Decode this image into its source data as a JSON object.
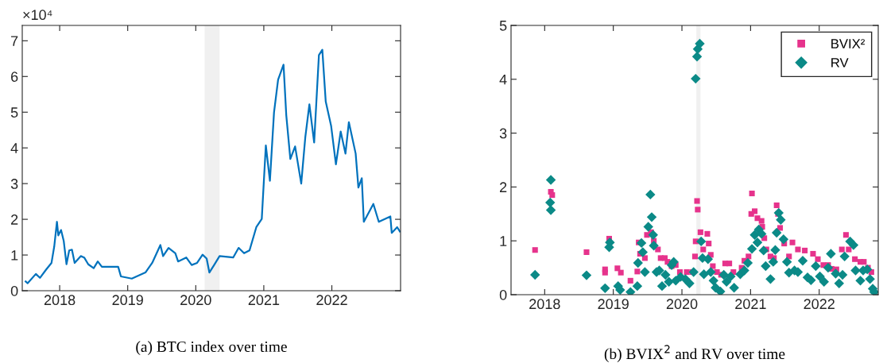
{
  "chart_data": [
    {
      "type": "line",
      "xlabel": "(a) BTC index over time",
      "annotations": [
        "×10⁴"
      ],
      "x": [
        2017.5,
        2017.53,
        2017.65,
        2017.71,
        2017.8,
        2017.88,
        2017.92,
        2017.96,
        2017.98,
        2018.02,
        2018.06,
        2018.1,
        2018.14,
        2018.18,
        2018.22,
        2018.31,
        2018.36,
        2018.42,
        2018.5,
        2018.56,
        2018.62,
        2018.86,
        2018.9,
        2019.06,
        2019.26,
        2019.36,
        2019.48,
        2019.52,
        2019.6,
        2019.7,
        2019.74,
        2019.86,
        2019.94,
        2020.02,
        2020.1,
        2020.16,
        2020.2,
        2020.27,
        2020.35,
        2020.55,
        2020.63,
        2020.71,
        2020.79,
        2020.89,
        2020.97,
        2021.03,
        2021.09,
        2021.15,
        2021.21,
        2021.29,
        2021.33,
        2021.39,
        2021.46,
        2021.55,
        2021.61,
        2021.67,
        2021.74,
        2021.81,
        2021.86,
        2021.91,
        2021.99,
        2022.06,
        2022.13,
        2022.2,
        2022.25,
        2022.35,
        2022.39,
        2022.44,
        2022.47,
        2022.61,
        2022.69,
        2022.86,
        2022.88,
        2022.96,
        2023.0
      ],
      "series": [
        {
          "color": "#0072bd",
          "values": [
            0.26,
            0.21,
            0.47,
            0.36,
            0.59,
            0.78,
            1.24,
            1.93,
            1.55,
            1.7,
            1.39,
            0.74,
            1.13,
            1.15,
            0.78,
            0.97,
            0.93,
            0.74,
            0.63,
            0.82,
            0.67,
            0.67,
            0.4,
            0.34,
            0.51,
            0.78,
            1.28,
            0.97,
            1.2,
            1.05,
            0.82,
            0.93,
            0.72,
            0.78,
            1.01,
            0.9,
            0.51,
            0.72,
            0.97,
            0.93,
            1.2,
            1.05,
            1.13,
            1.78,
            2.01,
            4.07,
            3.08,
            4.99,
            5.91,
            6.33,
            4.92,
            3.69,
            4.04,
            3.0,
            4.3,
            5.22,
            4.15,
            6.6,
            6.75,
            5.3,
            4.61,
            3.54,
            4.46,
            3.84,
            4.72,
            3.84,
            2.89,
            3.15,
            1.93,
            2.43,
            1.93,
            2.08,
            1.62,
            1.78,
            1.66
          ]
        }
      ],
      "xlim": [
        2017.45,
        2023.01
      ],
      "xticks": [
        2018,
        2019,
        2020,
        2021,
        2022
      ],
      "ylim": [
        0,
        7.43
      ],
      "yticks": [
        0,
        1,
        2,
        3,
        4,
        5,
        6,
        7
      ],
      "bands": [
        {
          "axis": "x",
          "from": 2020.13,
          "to": 2020.35,
          "color": "#f0f0f0"
        }
      ],
      "grid": false,
      "legend": false,
      "marker": "none",
      "line_style": "solid"
    },
    {
      "type": "scatter",
      "xlabel": "(b) BVIX$^{2}$ and RV over time",
      "series": [
        {
          "name": "BVIX²",
          "color": "#e6338c",
          "marker": "square",
          "x": [
            2017.86,
            2018.09,
            2018.11,
            2018.61,
            2018.88,
            2018.88,
            2018.94,
            2019.06,
            2019.11,
            2019.25,
            2019.35,
            2019.37,
            2019.39,
            2019.46,
            2019.49,
            2019.55,
            2019.59,
            2019.65,
            2019.69,
            2019.75,
            2019.79,
            2019.85,
            2019.91,
            2019.97,
            2020.07,
            2020.15,
            2020.19,
            2020.2,
            2020.22,
            2020.23,
            2020.27,
            2020.31,
            2020.37,
            2020.39,
            2020.42,
            2020.45,
            2020.51,
            2020.57,
            2020.63,
            2020.69,
            2020.75,
            2020.87,
            2020.91,
            2020.97,
            2021.01,
            2021.02,
            2021.06,
            2021.1,
            2021.16,
            2021.17,
            2021.2,
            2021.23,
            2021.29,
            2021.34,
            2021.38,
            2021.4,
            2021.43,
            2021.49,
            2021.56,
            2021.61,
            2021.69,
            2021.79,
            2021.91,
            2021.98,
            2022.06,
            2022.13,
            2022.18,
            2022.25,
            2022.33,
            2022.39,
            2022.43,
            2022.52,
            2022.6,
            2022.65,
            2022.71,
            2022.76
          ],
          "values": [
            0.83,
            1.91,
            1.85,
            0.79,
            0.47,
            0.41,
            1.04,
            0.49,
            0.41,
            0.26,
            0.43,
            0.97,
            0.76,
            0.68,
            1.11,
            1.16,
            1.0,
            0.84,
            0.68,
            0.68,
            0.61,
            0.53,
            0.55,
            0.42,
            0.42,
            0.42,
            0.71,
            0.99,
            1.74,
            1.58,
            1.16,
            0.84,
            1.13,
            0.95,
            0.74,
            0.53,
            0.42,
            0.37,
            0.58,
            0.58,
            0.42,
            0.5,
            0.63,
            0.71,
            1.5,
            1.88,
            1.55,
            1.42,
            1.37,
            1.26,
            1.05,
            0.84,
            0.71,
            0.68,
            1.66,
            1.5,
            1.24,
            0.95,
            0.71,
            0.97,
            0.84,
            0.82,
            0.76,
            0.66,
            0.55,
            0.55,
            0.48,
            0.47,
            0.84,
            1.11,
            0.84,
            0.66,
            0.61,
            0.61,
            0.5,
            0.42
          ]
        },
        {
          "name": "RV",
          "color": "#0b8a87",
          "marker": "diamond",
          "x": [
            2017.86,
            2018.09,
            2018.08,
            2018.09,
            2018.61,
            2018.88,
            2018.94,
            2018.95,
            2019.07,
            2019.1,
            2019.25,
            2019.35,
            2019.36,
            2019.41,
            2019.43,
            2019.46,
            2019.51,
            2019.54,
            2019.56,
            2019.58,
            2019.59,
            2019.63,
            2019.67,
            2019.71,
            2019.76,
            2019.81,
            2019.85,
            2019.88,
            2019.91,
            2019.98,
            2020.05,
            2020.11,
            2020.17,
            2020.2,
            2020.22,
            2020.23,
            2020.26,
            2020.28,
            2020.3,
            2020.32,
            2020.38,
            2020.42,
            2020.46,
            2020.49,
            2020.56,
            2020.61,
            2020.65,
            2020.71,
            2020.76,
            2020.85,
            2020.91,
            2020.96,
            2021.02,
            2021.06,
            2021.1,
            2021.12,
            2021.16,
            2021.19,
            2021.22,
            2021.29,
            2021.33,
            2021.36,
            2021.38,
            2021.41,
            2021.44,
            2021.48,
            2021.53,
            2021.56,
            2021.64,
            2021.69,
            2021.76,
            2021.83,
            2021.88,
            2021.95,
            2022.01,
            2022.07,
            2022.13,
            2022.17,
            2022.24,
            2022.29,
            2022.34,
            2022.37,
            2022.45,
            2022.5,
            2022.53,
            2022.6,
            2022.64,
            2022.7,
            2022.74,
            2022.78,
            2022.8
          ],
          "values": [
            0.37,
            2.13,
            1.71,
            1.57,
            0.36,
            0.12,
            0.88,
            0.97,
            0.16,
            0.09,
            0.05,
            0.16,
            0.59,
            0.96,
            0.79,
            0.42,
            1.26,
            1.86,
            1.44,
            1.11,
            0.91,
            0.42,
            0.45,
            0.16,
            0.37,
            0.24,
            0.55,
            0.61,
            0.26,
            0.33,
            0.29,
            0.21,
            0.42,
            4.01,
            4.42,
            4.56,
            4.66,
            0.99,
            0.68,
            0.38,
            0.66,
            0.42,
            0.26,
            0.13,
            0.06,
            0.37,
            0.24,
            0.34,
            0.13,
            0.38,
            0.45,
            0.59,
            0.85,
            1.11,
            0.97,
            1.21,
            1.13,
            0.82,
            0.53,
            0.29,
            0.61,
            0.83,
            1.15,
            1.52,
            1.39,
            1.03,
            0.61,
            0.41,
            0.45,
            0.42,
            0.63,
            0.32,
            0.27,
            0.53,
            0.34,
            0.24,
            0.5,
            0.76,
            0.39,
            0.21,
            0.37,
            0.71,
            0.99,
            0.92,
            0.45,
            0.26,
            0.45,
            0.47,
            0.29,
            0.11,
            0.05
          ]
        }
      ],
      "xlim": [
        2017.51,
        2022.86
      ],
      "xticks": [
        2018,
        2019,
        2020,
        2021,
        2022
      ],
      "ylim": [
        0,
        5
      ],
      "yticks": [
        0,
        1,
        2,
        3,
        4,
        5
      ],
      "bands": [
        {
          "axis": "x",
          "from": 2020.21,
          "to": 2020.27,
          "color": "#f0f0f0"
        }
      ],
      "grid": false,
      "legend": "top right"
    }
  ]
}
